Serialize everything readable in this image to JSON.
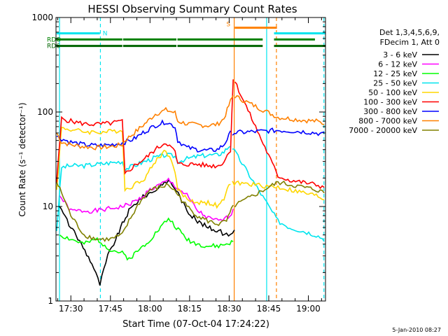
{
  "chart_data": {
    "type": "line",
    "title": "HESSI Observing Summary Count Rates",
    "xlabel": "Start Time (07-Oct-04 17:24:22)",
    "ylabel": "Count Rate (s⁻¹ detector⁻¹)",
    "ylog": true,
    "ylim": [
      1,
      1000
    ],
    "xlim_minutes": [
      24.37,
      126.5
    ],
    "x_ticks": [
      {
        "label": "17:30",
        "t": 30
      },
      {
        "label": "17:45",
        "t": 45
      },
      {
        "label": "18:00",
        "t": 60
      },
      {
        "label": "18:15",
        "t": 75
      },
      {
        "label": "18:30",
        "t": 90
      },
      {
        "label": "18:45",
        "t": 105
      },
      {
        "label": "19:00",
        "t": 120
      }
    ],
    "y_ticks": [
      {
        "label": "1",
        "v": 1
      },
      {
        "label": "10",
        "v": 10
      },
      {
        "label": "100",
        "v": 100
      },
      {
        "label": "1000",
        "v": 1000
      }
    ],
    "legend_header": [
      "Det 1,3,4,5,6,9,",
      "FDecim 1, Att 0"
    ],
    "legend_position": "right",
    "timestamp": "5-Jan-2010 08:27",
    "flags": [
      {
        "label": "N",
        "color": "#00e5ee",
        "y": 680,
        "segments": [
          [
            24.6,
            41.0
          ],
          [
            107.0,
            126.5
          ]
        ]
      },
      {
        "label": "RDO",
        "color": "#008000",
        "y": 585,
        "segments": [
          [
            24.6,
            49.5
          ],
          [
            49.8,
            70.0
          ],
          [
            70.4,
            102.7
          ],
          [
            107.0,
            122.5
          ]
        ]
      },
      {
        "label": "RD6",
        "color": "#006400",
        "y": 500,
        "segments": [
          [
            24.6,
            49.5
          ],
          [
            49.8,
            70.0
          ],
          [
            70.4,
            102.7
          ],
          [
            107.0,
            126.5
          ]
        ]
      },
      {
        "label": "S",
        "color": "#ff8000",
        "y": 780,
        "segments": [
          [
            92.1,
            108.1
          ]
        ]
      }
    ],
    "vlines": [
      {
        "t": 25.7,
        "color": "#00e5ee",
        "style": "solid"
      },
      {
        "t": 41.2,
        "color": "#00e5ee",
        "style": "dashed"
      },
      {
        "t": 104.2,
        "color": "#00e5ee",
        "style": "solid"
      },
      {
        "t": 107.9,
        "color": "#ff8000",
        "style": "dashed"
      },
      {
        "t": 91.9,
        "color": "#ff8000",
        "style": "solid"
      },
      {
        "t": 125.9,
        "color": "#00e5ee",
        "style": "dashed"
      }
    ],
    "series": [
      {
        "name": "3 - 6 keV",
        "color": "#000000",
        "values": [
          [
            25.7,
            10
          ],
          [
            30,
            6
          ],
          [
            34,
            4
          ],
          [
            38,
            2.5
          ],
          [
            41,
            1.5
          ],
          [
            44,
            3
          ],
          [
            47,
            4.5
          ],
          [
            49.5,
            6.5
          ],
          [
            52,
            9
          ],
          [
            56,
            12
          ],
          [
            60,
            14
          ],
          [
            64,
            16
          ],
          [
            67,
            19
          ],
          [
            70,
            15
          ],
          [
            74,
            9
          ],
          [
            78,
            7
          ],
          [
            82,
            6
          ],
          [
            86,
            5.5
          ],
          [
            89,
            5
          ],
          [
            92,
            5.5
          ]
        ]
      },
      {
        "name": "6 - 12 keV",
        "color": "#ff00ff",
        "values": [
          [
            25.7,
            13
          ],
          [
            30,
            9
          ],
          [
            35,
            9
          ],
          [
            40,
            9
          ],
          [
            45,
            9.5
          ],
          [
            49.5,
            10
          ],
          [
            52,
            10.5
          ],
          [
            56,
            12
          ],
          [
            60,
            15
          ],
          [
            64,
            17
          ],
          [
            67,
            19
          ],
          [
            70,
            16
          ],
          [
            74,
            13
          ],
          [
            78,
            9
          ],
          [
            82,
            7.5
          ],
          [
            86,
            7
          ],
          [
            89,
            7.5
          ],
          [
            91.5,
            9
          ]
        ]
      },
      {
        "name": "12 - 25 keV",
        "color": "#00ff00",
        "values": [
          [
            25.7,
            5
          ],
          [
            30,
            4.5
          ],
          [
            35,
            4
          ],
          [
            40,
            4.5
          ],
          [
            45,
            3.5
          ],
          [
            49.5,
            3.2
          ],
          [
            52,
            2.8
          ],
          [
            56,
            3.5
          ],
          [
            60,
            4.5
          ],
          [
            64,
            6
          ],
          [
            67,
            7.5
          ],
          [
            70,
            6
          ],
          [
            74,
            4.5
          ],
          [
            78,
            4
          ],
          [
            82,
            3.8
          ],
          [
            86,
            3.8
          ],
          [
            89,
            4
          ],
          [
            91.5,
            4.2
          ]
        ]
      },
      {
        "name": "25 - 50 keV",
        "color": "#00e5ee",
        "values": [
          [
            24.6,
            5.5
          ],
          [
            26.5,
            26
          ],
          [
            30,
            27
          ],
          [
            35,
            27
          ],
          [
            40,
            28
          ],
          [
            45,
            29
          ],
          [
            49.5,
            30
          ],
          [
            50.5,
            25
          ],
          [
            54,
            27
          ],
          [
            58,
            30
          ],
          [
            62,
            33
          ],
          [
            66,
            35
          ],
          [
            69.5,
            34
          ],
          [
            70.5,
            30
          ],
          [
            74,
            32
          ],
          [
            78,
            34
          ],
          [
            82,
            35
          ],
          [
            85.5,
            35
          ],
          [
            88,
            38
          ],
          [
            90.5,
            45
          ],
          [
            108.5,
            7
          ],
          [
            113,
            6
          ],
          [
            118,
            5.5
          ],
          [
            123,
            5
          ],
          [
            126,
            4.5
          ]
        ]
      },
      {
        "name": "50 - 100 keV",
        "color": "#ffd700",
        "values": [
          [
            24.6,
            15
          ],
          [
            26.5,
            68
          ],
          [
            30,
            65
          ],
          [
            35,
            62
          ],
          [
            40,
            61
          ],
          [
            45,
            62
          ],
          [
            49.5,
            65
          ],
          [
            50.5,
            15
          ],
          [
            54,
            17
          ],
          [
            58,
            20
          ],
          [
            62,
            30
          ],
          [
            66,
            40
          ],
          [
            69.5,
            24
          ],
          [
            70.5,
            15
          ],
          [
            74,
            12
          ],
          [
            78,
            11
          ],
          [
            82,
            11
          ],
          [
            86,
            10
          ],
          [
            88,
            12
          ],
          [
            90.5,
            18
          ],
          [
            108.5,
            16
          ],
          [
            113,
            15
          ],
          [
            118,
            14
          ],
          [
            123,
            13
          ],
          [
            126,
            12
          ]
        ]
      },
      {
        "name": "100 - 300 keV",
        "color": "#ff0000",
        "values": [
          [
            24.6,
            18
          ],
          [
            26.5,
            85
          ],
          [
            30,
            80
          ],
          [
            35,
            75
          ],
          [
            40,
            74
          ],
          [
            45,
            76
          ],
          [
            49.5,
            80
          ],
          [
            50.5,
            22
          ],
          [
            54,
            27
          ],
          [
            58,
            32
          ],
          [
            62,
            40
          ],
          [
            66,
            48
          ],
          [
            69.5,
            38
          ],
          [
            70.5,
            28
          ],
          [
            74,
            28
          ],
          [
            78,
            28
          ],
          [
            82,
            27
          ],
          [
            86,
            27
          ],
          [
            88,
            30
          ],
          [
            90.5,
            40
          ],
          [
            91.5,
            230
          ],
          [
            108.5,
            21
          ],
          [
            113,
            19
          ],
          [
            118,
            18
          ],
          [
            123,
            17
          ],
          [
            126,
            16
          ]
        ]
      },
      {
        "name": "300 - 800 keV",
        "color": "#0000ff",
        "values": [
          [
            24.6,
            55
          ],
          [
            26.5,
            52
          ],
          [
            30,
            48
          ],
          [
            35,
            45
          ],
          [
            40,
            44
          ],
          [
            45,
            45
          ],
          [
            49.5,
            47
          ],
          [
            50.5,
            48
          ],
          [
            54,
            52
          ],
          [
            58,
            62
          ],
          [
            62,
            72
          ],
          [
            66,
            79
          ],
          [
            69.5,
            70
          ],
          [
            70.5,
            50
          ],
          [
            74,
            42
          ],
          [
            78,
            40
          ],
          [
            82,
            39
          ],
          [
            85.5,
            40
          ],
          [
            88,
            45
          ],
          [
            90.5,
            60
          ],
          [
            108.5,
            64
          ],
          [
            113,
            63
          ],
          [
            118,
            62
          ],
          [
            123,
            60
          ],
          [
            126,
            58
          ]
        ]
      },
      {
        "name": "800 - 7000 keV",
        "color": "#ff8000",
        "values": [
          [
            24.6,
            60
          ],
          [
            26.5,
            48
          ],
          [
            30,
            45
          ],
          [
            35,
            43
          ],
          [
            40,
            42
          ],
          [
            45,
            43
          ],
          [
            49.5,
            45
          ],
          [
            50.5,
            50
          ],
          [
            54,
            60
          ],
          [
            58,
            75
          ],
          [
            62,
            95
          ],
          [
            66,
            105
          ],
          [
            69.5,
            98
          ],
          [
            70.5,
            80
          ],
          [
            74,
            75
          ],
          [
            78,
            73
          ],
          [
            82,
            72
          ],
          [
            85.5,
            74
          ],
          [
            88,
            85
          ],
          [
            90.5,
            130
          ],
          [
            91.5,
            150
          ],
          [
            108.5,
            88
          ],
          [
            113,
            85
          ],
          [
            118,
            82
          ],
          [
            123,
            80
          ],
          [
            126,
            75
          ]
        ]
      },
      {
        "name": "7000 - 20000 keV",
        "color": "#808000",
        "values": [
          [
            24.6,
            18
          ],
          [
            26.5,
            14
          ],
          [
            30,
            8
          ],
          [
            35,
            5
          ],
          [
            40,
            4.5
          ],
          [
            45,
            4.5
          ],
          [
            49.5,
            5
          ],
          [
            52,
            7
          ],
          [
            56,
            11
          ],
          [
            60,
            15
          ],
          [
            64,
            16
          ],
          [
            67,
            17
          ],
          [
            70,
            14
          ],
          [
            74,
            10
          ],
          [
            78,
            8
          ],
          [
            82,
            7
          ],
          [
            86,
            6.5
          ],
          [
            89,
            7
          ],
          [
            91.5,
            10
          ],
          [
            108.5,
            18
          ],
          [
            113,
            17
          ],
          [
            118,
            16
          ],
          [
            123,
            15
          ],
          [
            126,
            14
          ]
        ]
      }
    ]
  }
}
